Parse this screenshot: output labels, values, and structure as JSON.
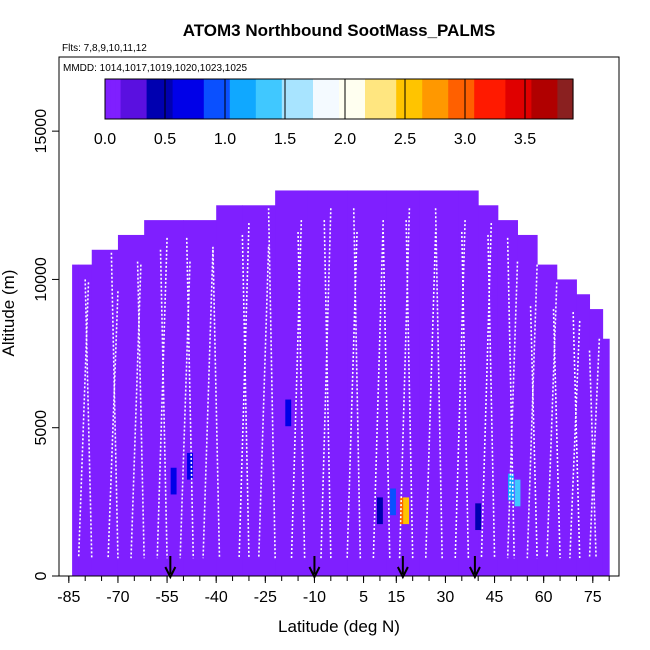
{
  "chart_data": {
    "type": "heatmap",
    "title": "ATOM3 Northbound SootMass_PALMS",
    "subtitle_flights": "Flts: 7,8,9,10,11,12",
    "subtitle_dates": "MMDD: 1014,1017,1019,1020,1023,1025",
    "xlabel": "Latitude (deg N)",
    "ylabel": "Altitude (m)",
    "xlim": [
      -88,
      83
    ],
    "ylim": [
      0,
      17500
    ],
    "x_ticks": [
      -85,
      -70,
      -55,
      -40,
      -25,
      -10,
      5,
      15,
      30,
      45,
      60,
      75
    ],
    "y_ticks": [
      0,
      5000,
      10000,
      15000
    ],
    "colorbar": {
      "min": 0.0,
      "max": 3.9,
      "tick_values": [
        0.0,
        0.5,
        1.0,
        1.5,
        2.0,
        2.5,
        3.0,
        3.5
      ],
      "tick_labels": [
        "0.0",
        "0.5",
        "1.0",
        "1.5",
        "2.0",
        "2.5",
        "3.0",
        "3.5"
      ],
      "colors": [
        "#7f1fff",
        "#5a10e0",
        "#0000b0",
        "#0000e8",
        "#0a50ff",
        "#10a8ff",
        "#40c8ff",
        "#a8e4ff",
        "#f4faff",
        "#fffff0",
        "#ffe680",
        "#ffc400",
        "#ff9800",
        "#ff6000",
        "#ff1a00",
        "#e00000",
        "#b00000",
        "#8a2020"
      ]
    },
    "background_value": 0.1,
    "coverage_profile": [
      {
        "x": -84,
        "top": 10500
      },
      {
        "x": -82,
        "top": 10500
      },
      {
        "x": -78,
        "top": 11000
      },
      {
        "x": -70,
        "top": 11500
      },
      {
        "x": -62,
        "top": 12000
      },
      {
        "x": -50,
        "top": 12000
      },
      {
        "x": -40,
        "top": 12500
      },
      {
        "x": -32,
        "top": 12500
      },
      {
        "x": -22,
        "top": 13000
      },
      {
        "x": -12,
        "top": 13000
      },
      {
        "x": 0,
        "top": 13000
      },
      {
        "x": 12,
        "top": 13000
      },
      {
        "x": 22,
        "top": 13000
      },
      {
        "x": 34,
        "top": 13000
      },
      {
        "x": 40,
        "top": 12500
      },
      {
        "x": 46,
        "top": 12000
      },
      {
        "x": 52,
        "top": 11500
      },
      {
        "x": 58,
        "top": 10500
      },
      {
        "x": 64,
        "top": 10000
      },
      {
        "x": 70,
        "top": 9500
      },
      {
        "x": 74,
        "top": 9000
      },
      {
        "x": 78,
        "top": 8000
      }
    ],
    "enhanced_cells": [
      {
        "x": -53,
        "y": 3200,
        "value": 0.6
      },
      {
        "x": -48,
        "y": 3700,
        "value": 0.7
      },
      {
        "x": -18,
        "y": 5500,
        "value": 0.6
      },
      {
        "x": 10,
        "y": 2200,
        "value": 0.5
      },
      {
        "x": 14,
        "y": 2500,
        "value": 0.9
      },
      {
        "x": 17,
        "y": 2200,
        "value": 3.0
      },
      {
        "x": 18,
        "y": 2200,
        "value": 2.6
      },
      {
        "x": 40,
        "y": 2000,
        "value": 0.5
      },
      {
        "x": 50,
        "y": 3000,
        "value": 1.2
      },
      {
        "x": 52,
        "y": 2800,
        "value": 1.4
      }
    ],
    "flight_profile_latitudes": [
      -82,
      -78,
      -73,
      -70,
      -66,
      -62,
      -58,
      -55,
      -51,
      -47,
      -44,
      -39,
      -33,
      -30,
      -27,
      -22,
      -17,
      -13,
      -8,
      -5,
      0,
      4,
      8,
      13,
      16,
      20,
      24,
      29,
      33,
      37,
      41,
      45,
      49,
      51,
      55,
      58,
      61,
      65,
      68,
      71,
      74,
      76
    ],
    "arrow_latitudes": [
      -54,
      -10,
      17,
      39
    ]
  }
}
